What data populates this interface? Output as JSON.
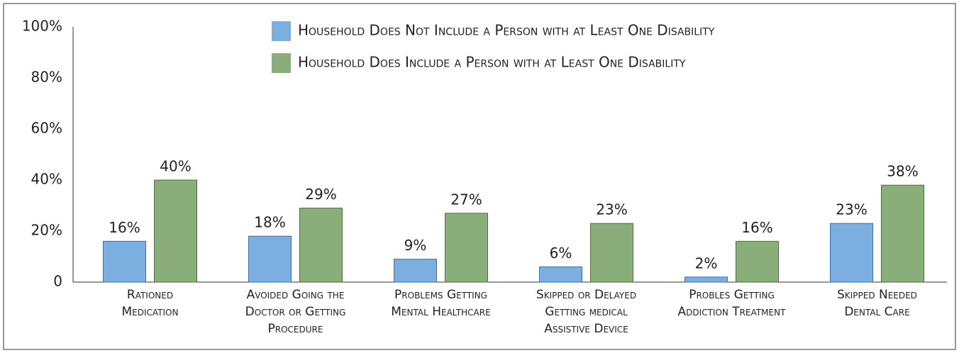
{
  "chart_data": {
    "type": "bar",
    "categories": [
      [
        "Rationed",
        "Medication"
      ],
      [
        "Avoided Going the",
        "Doctor or Getting",
        "Procedure"
      ],
      [
        "Problems Getting",
        "Mental Healthcare"
      ],
      [
        "Skipped or Delayed",
        "Getting medical",
        "Assistive Device"
      ],
      [
        "Probles Getting",
        "Addiction Treatment"
      ],
      [
        "Skipped Needed",
        "Dental Care"
      ]
    ],
    "series": [
      {
        "name": "Household Does Not Include a Person with at Least One Disability",
        "color": "#7aafe0",
        "values": [
          16,
          18,
          9,
          6,
          2,
          23
        ],
        "value_labels": [
          "16%",
          "18%",
          "9%",
          "6%",
          "2%",
          "23%"
        ]
      },
      {
        "name": "Household Does Include a Person with at Least One Disability",
        "color": "#8aae7a",
        "values": [
          40,
          29,
          27,
          23,
          16,
          38
        ],
        "value_labels": [
          "40%",
          "29%",
          "27%",
          "23%",
          "16%",
          "38%"
        ]
      }
    ],
    "ylim": [
      0,
      100
    ],
    "yticks": [
      0,
      {
        "value": 20,
        "label": "20%"
      },
      {
        "value": 40,
        "label": "40%"
      },
      {
        "value": 60,
        "label": "60%"
      },
      {
        "value": 80,
        "label": "80%"
      },
      {
        "value": 100,
        "label": "100%"
      }
    ],
    "grid": false
  }
}
